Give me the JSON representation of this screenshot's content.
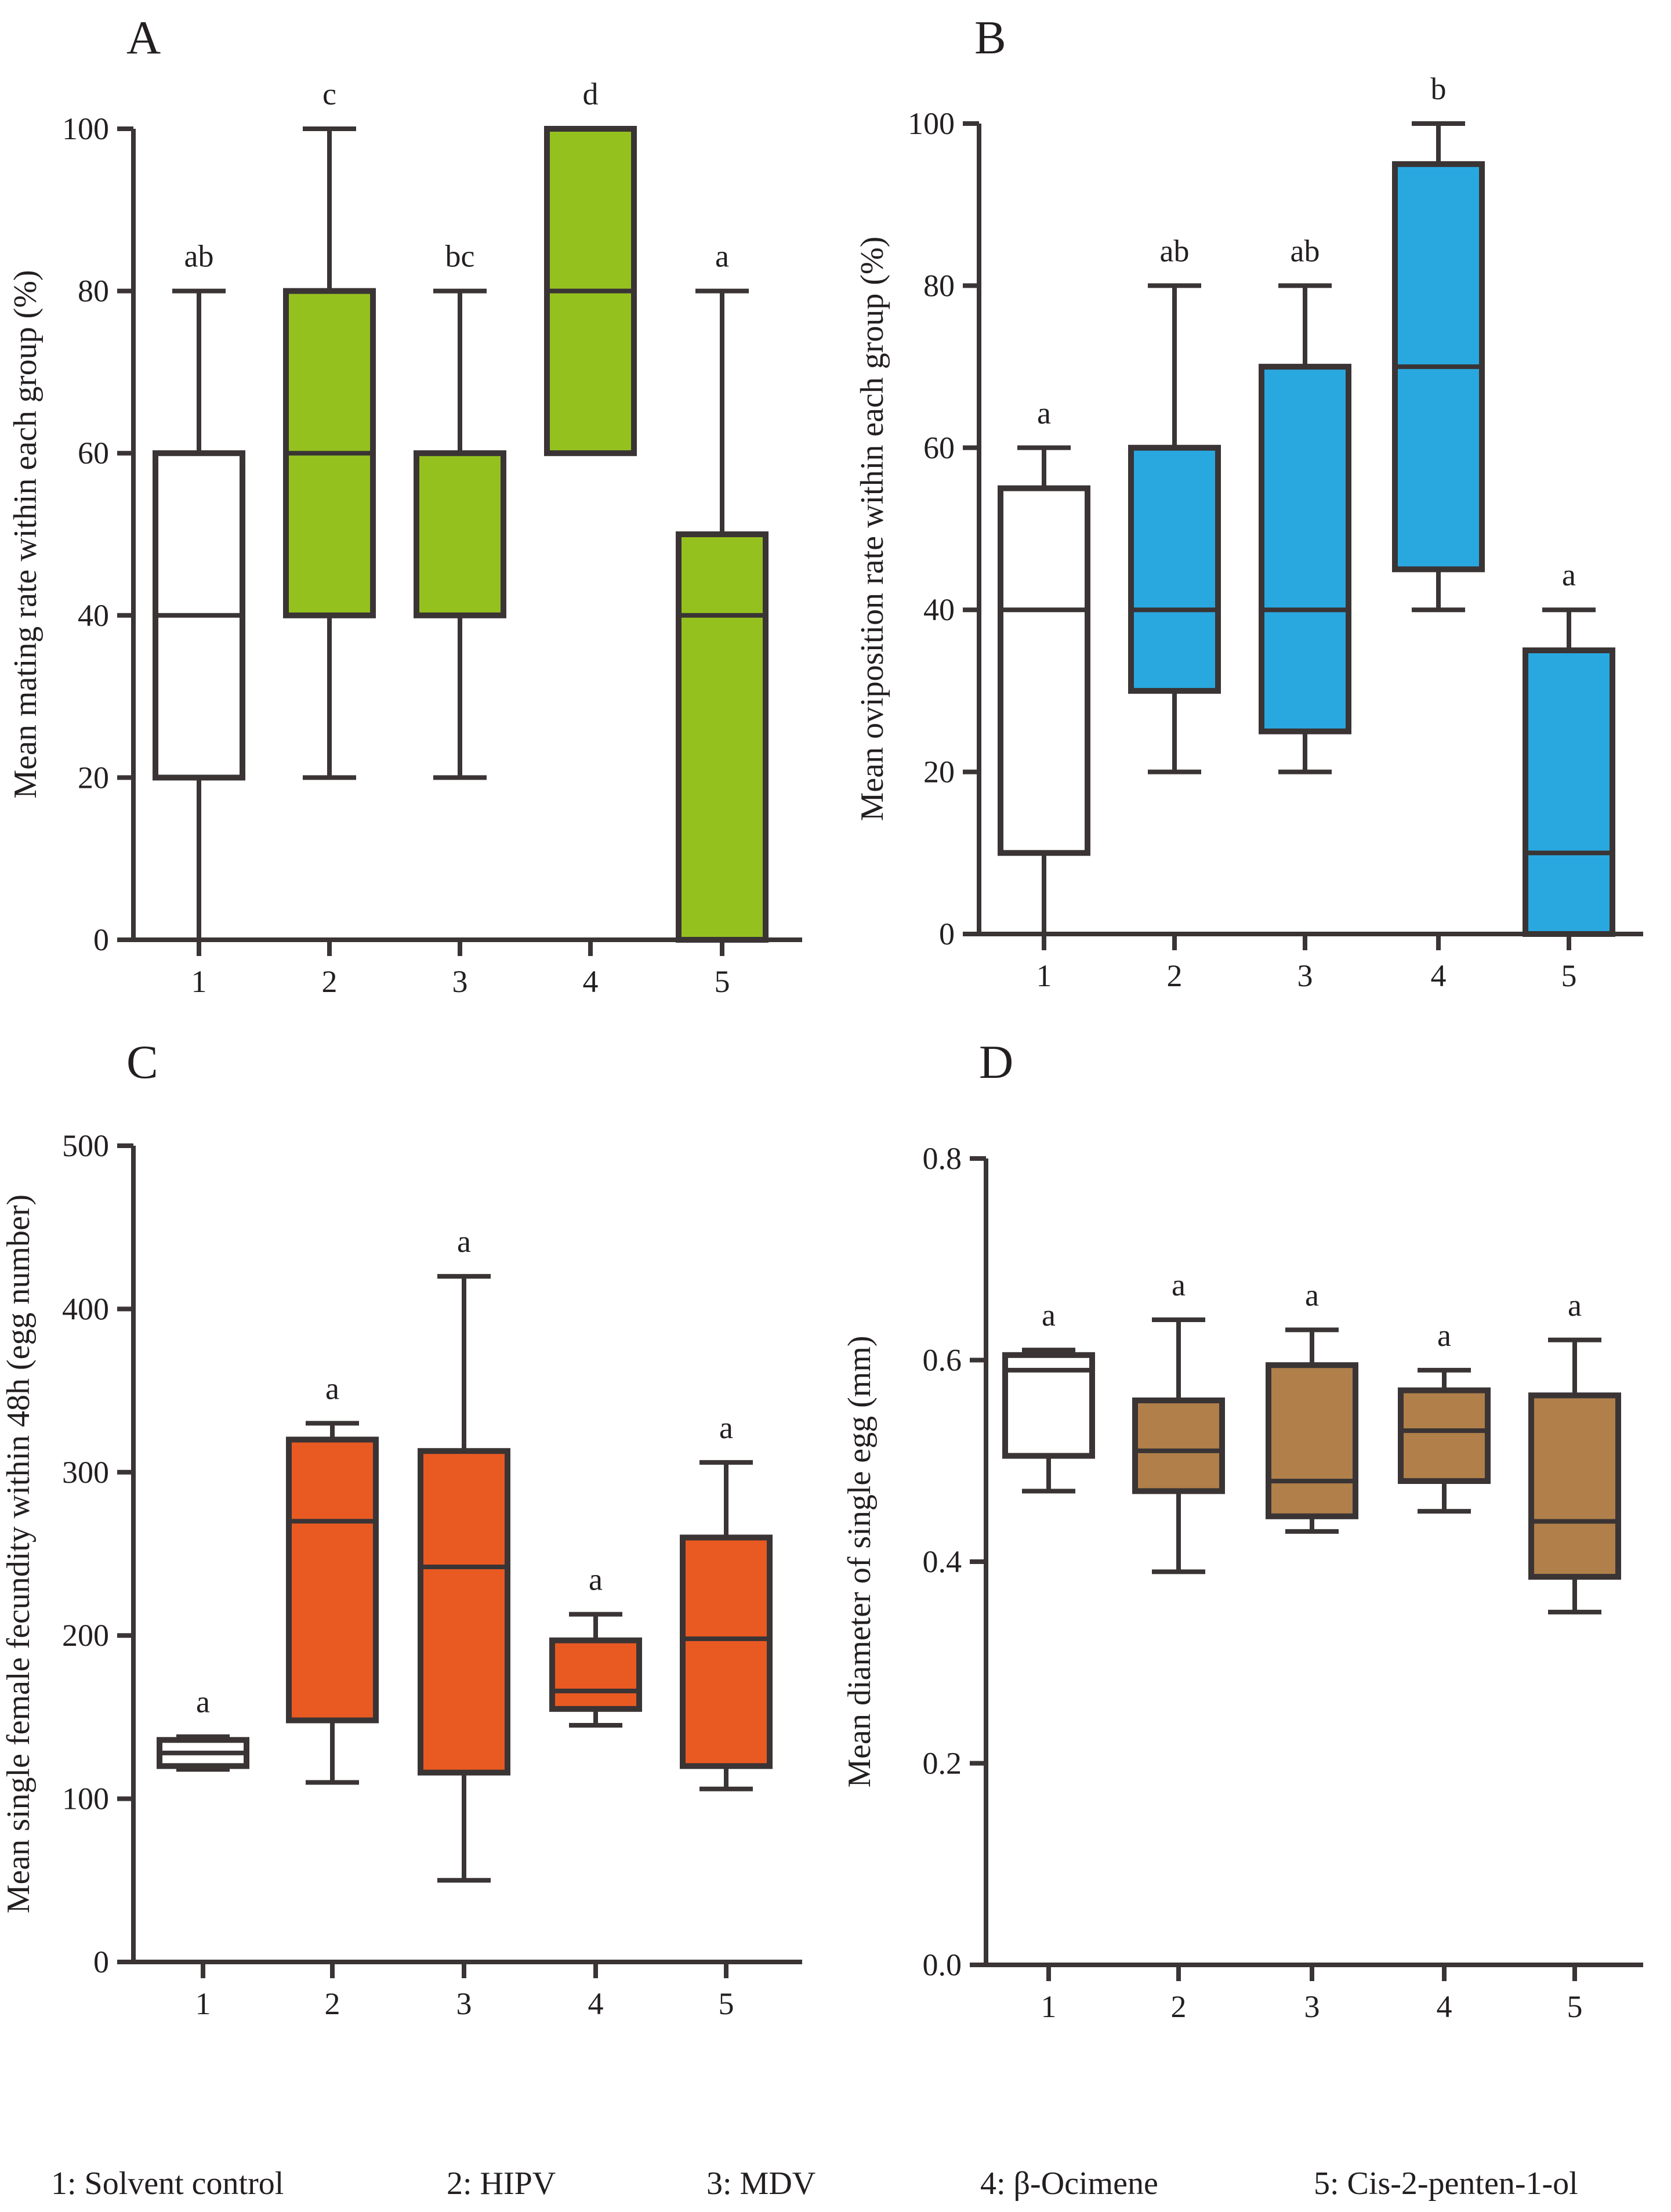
{
  "legend": [
    {
      "label": "1: Solvent control"
    },
    {
      "label": "2: HIPV"
    },
    {
      "label": "3: MDV"
    },
    {
      "label": "4: β-Ocimene"
    },
    {
      "label": "5: Cis-2-penten-1-ol"
    }
  ],
  "chart_data": [
    {
      "type": "box",
      "panel": "A",
      "ylabel": "Mean mating rate within each group (%)",
      "ylim": [
        0,
        100
      ],
      "yticks": [
        "0",
        "20",
        "40",
        "60",
        "80",
        "100"
      ],
      "categories": [
        "1",
        "2",
        "3",
        "4",
        "5"
      ],
      "fill_colors": [
        "#ffffff",
        "#95c11f",
        "#95c11f",
        "#95c11f",
        "#95c11f"
      ],
      "boxes": [
        {
          "category": "1",
          "min": 0,
          "q1": 20,
          "median": 40,
          "q3": 60,
          "max": 80,
          "letter": "ab"
        },
        {
          "category": "2",
          "min": 20,
          "q1": 40,
          "median": 60,
          "q3": 80,
          "max": 100,
          "letter": "c"
        },
        {
          "category": "3",
          "min": 20,
          "q1": 40,
          "median": 60,
          "q3": 60,
          "max": 80,
          "letter": "bc"
        },
        {
          "category": "4",
          "min": 60,
          "q1": 60,
          "median": 80,
          "q3": 100,
          "max": 100,
          "letter": "d"
        },
        {
          "category": "5",
          "min": 0,
          "q1": 0,
          "median": 40,
          "q3": 50,
          "max": 80,
          "letter": "a"
        }
      ]
    },
    {
      "type": "box",
      "panel": "B",
      "ylabel": "Mean oviposition rate within each group (%)",
      "ylim": [
        0,
        100
      ],
      "yticks": [
        "0",
        "20",
        "40",
        "60",
        "80",
        "100"
      ],
      "categories": [
        "1",
        "2",
        "3",
        "4",
        "5"
      ],
      "fill_colors": [
        "#ffffff",
        "#29a8e0",
        "#29a8e0",
        "#29a8e0",
        "#29a8e0"
      ],
      "boxes": [
        {
          "category": "1",
          "min": 0,
          "q1": 10,
          "median": 40,
          "q3": 55,
          "max": 60,
          "letter": "a"
        },
        {
          "category": "2",
          "min": 20,
          "q1": 30,
          "median": 40,
          "q3": 60,
          "max": 80,
          "letter": "ab"
        },
        {
          "category": "3",
          "min": 20,
          "q1": 25,
          "median": 40,
          "q3": 70,
          "max": 80,
          "letter": "ab"
        },
        {
          "category": "4",
          "min": 40,
          "q1": 45,
          "median": 70,
          "q3": 95,
          "max": 100,
          "letter": "b"
        },
        {
          "category": "5",
          "min": 0,
          "q1": 0,
          "median": 10,
          "q3": 35,
          "max": 40,
          "letter": "a"
        }
      ]
    },
    {
      "type": "box",
      "panel": "C",
      "ylabel": "Mean single female fecundity within 48h (egg number)",
      "ylim": [
        0,
        500
      ],
      "yticks": [
        "0",
        "100",
        "200",
        "300",
        "400",
        "500"
      ],
      "categories": [
        "1",
        "2",
        "3",
        "4",
        "5"
      ],
      "fill_colors": [
        "#ffffff",
        "#e95a22",
        "#e95a22",
        "#e95a22",
        "#e95a22"
      ],
      "boxes": [
        {
          "category": "1",
          "min": 118,
          "q1": 120,
          "median": 128,
          "q3": 136,
          "max": 138,
          "letter": "a"
        },
        {
          "category": "2",
          "min": 110,
          "q1": 148,
          "median": 270,
          "q3": 320,
          "max": 330,
          "letter": "a"
        },
        {
          "category": "3",
          "min": 50,
          "q1": 116,
          "median": 242,
          "q3": 313,
          "max": 420,
          "letter": "a"
        },
        {
          "category": "4",
          "min": 145,
          "q1": 155,
          "median": 166,
          "q3": 197,
          "max": 213,
          "letter": "a"
        },
        {
          "category": "5",
          "min": 106,
          "q1": 120,
          "median": 198,
          "q3": 260,
          "max": 306,
          "letter": "a"
        }
      ]
    },
    {
      "type": "box",
      "panel": "D",
      "ylabel": "Mean diameter of single egg (mm)",
      "ylim": [
        0,
        0.8
      ],
      "yticks": [
        "0.0",
        "0.2",
        "0.4",
        "0.6",
        "0.8"
      ],
      "categories": [
        "1",
        "2",
        "3",
        "4",
        "5"
      ],
      "fill_colors": [
        "#ffffff",
        "#b07f4a",
        "#b07f4a",
        "#b07f4a",
        "#b07f4a"
      ],
      "boxes": [
        {
          "category": "1",
          "min": 0.47,
          "q1": 0.505,
          "median": 0.59,
          "q3": 0.605,
          "max": 0.61,
          "letter": "a"
        },
        {
          "category": "2",
          "min": 0.39,
          "q1": 0.47,
          "median": 0.51,
          "q3": 0.56,
          "max": 0.64,
          "letter": "a"
        },
        {
          "category": "3",
          "min": 0.43,
          "q1": 0.445,
          "median": 0.48,
          "q3": 0.595,
          "max": 0.63,
          "letter": "a"
        },
        {
          "category": "4",
          "min": 0.45,
          "q1": 0.48,
          "median": 0.53,
          "q3": 0.57,
          "max": 0.59,
          "letter": "a"
        },
        {
          "category": "5",
          "min": 0.35,
          "q1": 0.385,
          "median": 0.44,
          "q3": 0.565,
          "max": 0.62,
          "letter": "a"
        }
      ]
    }
  ]
}
